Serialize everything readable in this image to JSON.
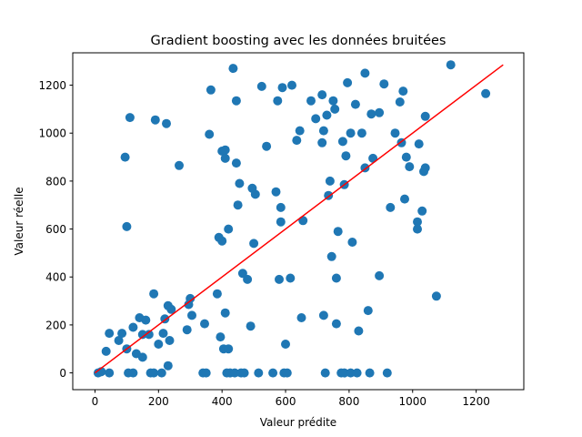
{
  "chart_data": {
    "type": "scatter",
    "title": "Gradient boosting avec les données bruitées",
    "xlabel": "Valeur prédite",
    "ylabel": "Valeur réelle",
    "xlim": [
      -70,
      1350
    ],
    "ylim": [
      -70,
      1335
    ],
    "xticks": [
      0,
      200,
      400,
      600,
      800,
      1000,
      1200
    ],
    "yticks": [
      0,
      200,
      400,
      600,
      800,
      1000,
      1200
    ],
    "grid": false,
    "colors": {
      "points": "#1f77b4",
      "line": "#ff0000",
      "frame": "#000000"
    },
    "series": [
      {
        "type": "scatter",
        "points": [
          [
            10,
            0
          ],
          [
            20,
            5
          ],
          [
            35,
            90
          ],
          [
            45,
            165
          ],
          [
            45,
            0
          ],
          [
            75,
            135
          ],
          [
            85,
            165
          ],
          [
            95,
            900
          ],
          [
            100,
            100
          ],
          [
            100,
            610
          ],
          [
            105,
            0
          ],
          [
            110,
            1065
          ],
          [
            120,
            0
          ],
          [
            120,
            190
          ],
          [
            130,
            80
          ],
          [
            140,
            230
          ],
          [
            150,
            65
          ],
          [
            150,
            160
          ],
          [
            160,
            220
          ],
          [
            170,
            160
          ],
          [
            175,
            0
          ],
          [
            185,
            330
          ],
          [
            185,
            0
          ],
          [
            190,
            1055
          ],
          [
            200,
            120
          ],
          [
            210,
            0
          ],
          [
            215,
            165
          ],
          [
            220,
            225
          ],
          [
            225,
            1040
          ],
          [
            230,
            280
          ],
          [
            230,
            30
          ],
          [
            235,
            135
          ],
          [
            240,
            265
          ],
          [
            265,
            865
          ],
          [
            290,
            180
          ],
          [
            295,
            285
          ],
          [
            300,
            310
          ],
          [
            305,
            240
          ],
          [
            340,
            0
          ],
          [
            345,
            205
          ],
          [
            350,
            0
          ],
          [
            360,
            995
          ],
          [
            365,
            1180
          ],
          [
            385,
            330
          ],
          [
            390,
            565
          ],
          [
            395,
            150
          ],
          [
            400,
            925
          ],
          [
            400,
            550
          ],
          [
            405,
            100
          ],
          [
            410,
            250
          ],
          [
            410,
            930
          ],
          [
            410,
            895
          ],
          [
            415,
            0
          ],
          [
            420,
            600
          ],
          [
            420,
            100
          ],
          [
            425,
            0
          ],
          [
            435,
            1270
          ],
          [
            440,
            0
          ],
          [
            445,
            1135
          ],
          [
            445,
            875
          ],
          [
            450,
            700
          ],
          [
            455,
            790
          ],
          [
            460,
            0
          ],
          [
            465,
            415
          ],
          [
            470,
            0
          ],
          [
            480,
            390
          ],
          [
            490,
            195
          ],
          [
            495,
            770
          ],
          [
            500,
            540
          ],
          [
            505,
            745
          ],
          [
            515,
            0
          ],
          [
            525,
            1195
          ],
          [
            540,
            945
          ],
          [
            560,
            0
          ],
          [
            570,
            755
          ],
          [
            575,
            1135
          ],
          [
            580,
            390
          ],
          [
            585,
            690
          ],
          [
            585,
            630
          ],
          [
            590,
            1190
          ],
          [
            595,
            0
          ],
          [
            600,
            120
          ],
          [
            605,
            0
          ],
          [
            615,
            395
          ],
          [
            620,
            1200
          ],
          [
            635,
            970
          ],
          [
            645,
            1010
          ],
          [
            650,
            230
          ],
          [
            655,
            635
          ],
          [
            680,
            1135
          ],
          [
            695,
            1060
          ],
          [
            715,
            1160
          ],
          [
            715,
            960
          ],
          [
            720,
            240
          ],
          [
            720,
            1010
          ],
          [
            725,
            0
          ],
          [
            730,
            1075
          ],
          [
            735,
            740
          ],
          [
            740,
            800
          ],
          [
            745,
            485
          ],
          [
            750,
            1135
          ],
          [
            755,
            1100
          ],
          [
            760,
            395
          ],
          [
            760,
            205
          ],
          [
            765,
            590
          ],
          [
            775,
            0
          ],
          [
            780,
            965
          ],
          [
            785,
            785
          ],
          [
            785,
            0
          ],
          [
            790,
            905
          ],
          [
            795,
            1210
          ],
          [
            805,
            0
          ],
          [
            805,
            1000
          ],
          [
            810,
            545
          ],
          [
            820,
            1120
          ],
          [
            825,
            0
          ],
          [
            830,
            175
          ],
          [
            840,
            1000
          ],
          [
            850,
            1250
          ],
          [
            850,
            855
          ],
          [
            860,
            260
          ],
          [
            865,
            0
          ],
          [
            870,
            1080
          ],
          [
            875,
            895
          ],
          [
            895,
            1085
          ],
          [
            895,
            405
          ],
          [
            910,
            1205
          ],
          [
            920,
            0
          ],
          [
            930,
            690
          ],
          [
            945,
            1000
          ],
          [
            960,
            1130
          ],
          [
            965,
            960
          ],
          [
            970,
            1175
          ],
          [
            975,
            725
          ],
          [
            980,
            900
          ],
          [
            990,
            860
          ],
          [
            1015,
            630
          ],
          [
            1015,
            600
          ],
          [
            1020,
            955
          ],
          [
            1030,
            675
          ],
          [
            1035,
            840
          ],
          [
            1040,
            1070
          ],
          [
            1040,
            855
          ],
          [
            1075,
            320
          ],
          [
            1120,
            1285
          ],
          [
            1230,
            1165
          ]
        ]
      },
      {
        "type": "line",
        "points": [
          [
            0,
            0
          ],
          [
            1285,
            1285
          ]
        ]
      }
    ]
  }
}
